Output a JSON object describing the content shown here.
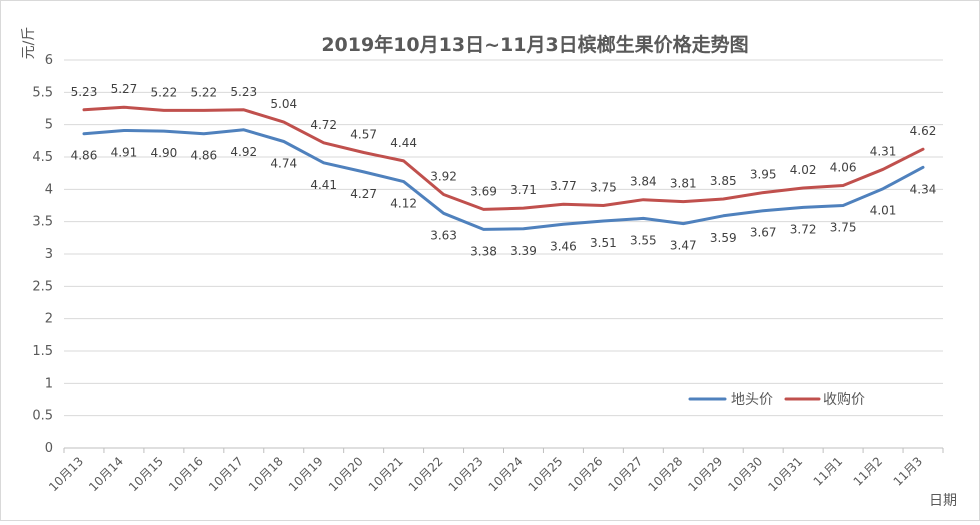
{
  "chart_data": {
    "type": "line",
    "title": "2019年10月13日~11月3日槟榔生果价格走势图",
    "xlabel": "日期",
    "ylabel": "元/斤",
    "ylim": [
      0,
      6
    ],
    "ytick_step": 0.5,
    "ytick_labels": [
      "0",
      "0.5",
      "1",
      "1.5",
      "2",
      "2.5",
      "3",
      "3.5",
      "4",
      "4.5",
      "5",
      "5.5",
      "6"
    ],
    "grid": true,
    "legend_position": "lower-right",
    "categories": [
      "10月13",
      "10月14",
      "10月15",
      "10月16",
      "10月17",
      "10月18",
      "10月19",
      "10月20",
      "10月21",
      "10月22",
      "10月23",
      "10月24",
      "10月25",
      "10月26",
      "10月27",
      "10月28",
      "10月29",
      "10月30",
      "10月31",
      "11月1",
      "11月2",
      "11月3"
    ],
    "series": [
      {
        "name": "地头价",
        "color": "#4F81BD",
        "label_position": "below",
        "values": [
          4.86,
          4.91,
          4.9,
          4.86,
          4.92,
          4.74,
          4.41,
          4.27,
          4.12,
          3.63,
          3.38,
          3.39,
          3.46,
          3.51,
          3.55,
          3.47,
          3.59,
          3.67,
          3.72,
          3.75,
          4.01,
          4.34
        ],
        "labels": [
          "4.86",
          "4.91",
          "4.90",
          "4.86",
          "4.92",
          "4.74",
          "4.41",
          "4.27",
          "4.12",
          "3.63",
          "3.38",
          "3.39",
          "3.46",
          "3.51",
          "3.55",
          "3.47",
          "3.59",
          "3.67",
          "3.72",
          "3.75",
          "4.01",
          "4.34"
        ]
      },
      {
        "name": "收购价",
        "color": "#C0504D",
        "label_position": "above",
        "values": [
          5.23,
          5.27,
          5.22,
          5.22,
          5.23,
          5.04,
          4.72,
          4.57,
          4.44,
          3.92,
          3.69,
          3.71,
          3.77,
          3.75,
          3.84,
          3.81,
          3.85,
          3.95,
          4.02,
          4.06,
          4.31,
          4.62
        ],
        "labels": [
          "5.23",
          "5.27",
          "5.22",
          "5.22",
          "5.23",
          "5.04",
          "4.72",
          "4.57",
          "4.44",
          "3.92",
          "3.69",
          "3.71",
          "3.77",
          "3.75",
          "3.84",
          "3.81",
          "3.85",
          "3.95",
          "4.02",
          "4.06",
          "4.31",
          "4.62"
        ]
      }
    ]
  }
}
